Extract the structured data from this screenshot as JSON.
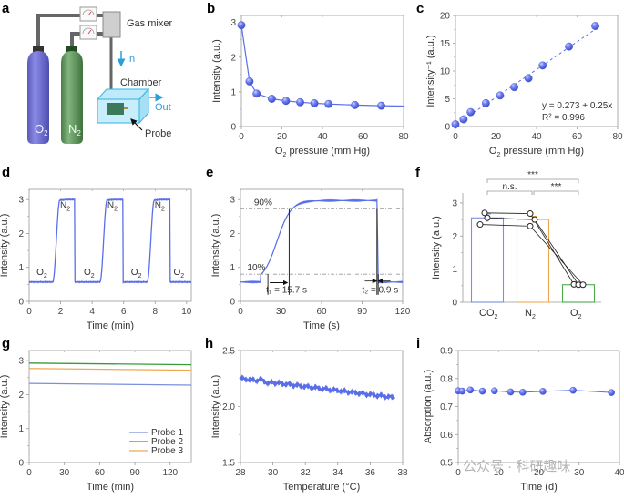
{
  "figure": {
    "panels": [
      "a",
      "b",
      "c",
      "d",
      "e",
      "f",
      "g",
      "h",
      "i"
    ],
    "watermark": "公众号 · 科研趣味"
  },
  "diagram": {
    "letter": "a",
    "gas_mixer_label": "Gas mixer",
    "in_label": "In",
    "chamber_label": "Chamber",
    "out_label": "Out",
    "probe_label": "Probe",
    "cylinder_o2_label": "O",
    "cylinder_o2_sub": "2",
    "cylinder_n2_label": "N",
    "cylinder_n2_sub": "2",
    "colors": {
      "o2_cylinder": "#6a6ad0",
      "n2_cylinder": "#5e9a5a",
      "chamber": "#8fd8f5",
      "arrow": "#2a9fd8",
      "pipe": "#666666"
    }
  },
  "chart_data": [
    {
      "panel": "b",
      "type": "line",
      "xlabel": "O₂ pressure (mm Hg)",
      "ylabel": "Intensity (a.u.)",
      "xlim": [
        0,
        80
      ],
      "ylim": [
        0,
        3.2
      ],
      "xticks": [
        0,
        20,
        40,
        60,
        80
      ],
      "yticks": [
        0,
        1,
        2,
        3
      ],
      "x": [
        0,
        4,
        7.5,
        15,
        22,
        29,
        36,
        43,
        56,
        69
      ],
      "y": [
        2.92,
        1.3,
        0.95,
        0.8,
        0.74,
        0.7,
        0.67,
        0.65,
        0.62,
        0.6
      ],
      "trail_end": [
        80,
        0.59
      ],
      "color": "#5a6ee8",
      "grid": false
    },
    {
      "panel": "c",
      "type": "scatter",
      "xlabel": "O₂ pressure (mm Hg)",
      "ylabel": "Intensity⁻¹ (a.u.)",
      "xlim": [
        0,
        80
      ],
      "ylim": [
        0,
        20
      ],
      "xticks": [
        0,
        20,
        40,
        60,
        80
      ],
      "yticks": [
        0,
        5,
        10,
        15,
        20
      ],
      "x": [
        0,
        4,
        7.5,
        15,
        22,
        29,
        36,
        43,
        56,
        69
      ],
      "y": [
        0.4,
        1.3,
        2.6,
        4.2,
        5.6,
        7.1,
        8.7,
        11.0,
        14.4,
        18.1
      ],
      "fit": {
        "intercept": 0.273,
        "slope": 0.25
      },
      "annotation_eq": "y = 0.273 + 0.25x",
      "annotation_r2": "R² = 0.996",
      "color": "#5a6ee8",
      "grid": false
    },
    {
      "panel": "d",
      "type": "line",
      "xlabel": "Time (min)",
      "ylabel": "Intensity (a.u.)",
      "xlim": [
        0,
        10.3
      ],
      "ylim": [
        0,
        3.3
      ],
      "xticks": [
        0,
        2,
        4,
        6,
        8,
        10
      ],
      "yticks": [
        0,
        1,
        2,
        3
      ],
      "low": 0.57,
      "high": 3.0,
      "n2_intervals": [
        [
          1.5,
          2.9
        ],
        [
          4.5,
          5.95
        ],
        [
          7.5,
          8.95
        ]
      ],
      "labels": [
        {
          "text": "O",
          "sub": "2",
          "x": 0.7,
          "y": 0.78
        },
        {
          "text": "N",
          "sub": "2",
          "x": 2.2,
          "y": 2.75
        },
        {
          "text": "O",
          "sub": "2",
          "x": 3.7,
          "y": 0.78
        },
        {
          "text": "N",
          "sub": "2",
          "x": 5.2,
          "y": 2.75
        },
        {
          "text": "O",
          "sub": "2",
          "x": 6.7,
          "y": 0.78
        },
        {
          "text": "N",
          "sub": "2",
          "x": 8.2,
          "y": 2.75
        },
        {
          "text": "O",
          "sub": "2",
          "x": 9.4,
          "y": 0.78
        }
      ],
      "color": "#5a6ee8"
    },
    {
      "panel": "e",
      "type": "line",
      "xlabel": "Time (s)",
      "ylabel": "Intensity (a.u.)",
      "xlim": [
        0,
        120
      ],
      "ylim": [
        0,
        3.3
      ],
      "xticks": [
        0,
        30,
        60,
        90,
        120
      ],
      "yticks": [
        0,
        1,
        2,
        3
      ],
      "low": 0.57,
      "high": 2.97,
      "rise_start": 15,
      "rise_t10": 20.3,
      "rise_t90": 36,
      "fall_t": 101,
      "fall_end": 102,
      "level_90_pct": 2.72,
      "level_10_pct": 0.8,
      "label_90": "90%",
      "label_10": "10%",
      "t1_label": "t₁ = 15.7 s",
      "t2_label": "t₂ = 0.9 s",
      "color": "#5a6ee8"
    },
    {
      "panel": "f",
      "type": "bar",
      "ylabel": "Intensity (a.u.)",
      "ylim": [
        0,
        3.3
      ],
      "yticks": [
        0,
        1,
        2,
        3
      ],
      "categories": [
        "CO₂",
        "N₂",
        "O₂"
      ],
      "values": [
        2.55,
        2.5,
        0.53
      ],
      "errors": [
        0.12,
        0.1,
        0.02
      ],
      "colors": [
        "#7b8fdc",
        "#f0a850",
        "#4caa4c"
      ],
      "points": [
        [
          2.7,
          2.55,
          2.35
        ],
        [
          2.68,
          2.5,
          2.3
        ],
        [
          0.54,
          0.53,
          0.53
        ]
      ],
      "significance": [
        {
          "from": 0,
          "to": 2,
          "label": "***"
        },
        {
          "from": 0,
          "to": 1,
          "label": "n.s."
        },
        {
          "from": 1,
          "to": 2,
          "label": "***"
        }
      ]
    },
    {
      "panel": "g",
      "type": "line",
      "xlabel": "Time (min)",
      "ylabel": "Intensity (a.u.)",
      "xlim": [
        0,
        138
      ],
      "ylim": [
        0,
        3.3
      ],
      "xticks": [
        0,
        30,
        60,
        90,
        120
      ],
      "yticks": [
        0,
        1,
        2,
        3
      ],
      "series": [
        {
          "name": "Probe 1",
          "start": 2.33,
          "end": 2.28,
          "color": "#7b8fdc"
        },
        {
          "name": "Probe 2",
          "start": 2.93,
          "end": 2.88,
          "color": "#3a9a3a"
        },
        {
          "name": "Probe 3",
          "start": 2.77,
          "end": 2.72,
          "color": "#f0a850"
        }
      ],
      "legend": "bottom-right"
    },
    {
      "panel": "h",
      "type": "line",
      "xlabel": "Temperature (°C)",
      "ylabel": "Intensity (a.u.)",
      "xlim": [
        28,
        38
      ],
      "ylim": [
        1.5,
        2.5
      ],
      "xticks": [
        28,
        30,
        32,
        34,
        36,
        38
      ],
      "yticks": [
        1.5,
        2.0,
        2.5
      ],
      "ytick_labels": [
        "1.5",
        "2.0",
        "2.5"
      ],
      "start": [
        28,
        2.25
      ],
      "end": [
        37.5,
        2.08
      ],
      "color": "#5a6ee8"
    },
    {
      "panel": "i",
      "type": "line",
      "xlabel": "Time (d)",
      "ylabel": "Absorption (a.u.)",
      "xlim": [
        0,
        40
      ],
      "ylim": [
        0.5,
        0.9
      ],
      "xticks": [
        0,
        10,
        20,
        30,
        40
      ],
      "yticks": [
        0.5,
        0.6,
        0.7,
        0.8,
        0.9
      ],
      "ytick_labels": [
        "0.5",
        "0.6",
        "0.7",
        "0.8",
        "0.9"
      ],
      "x": [
        0,
        1,
        3,
        6,
        9,
        13,
        16,
        21,
        28.5,
        38
      ],
      "y": [
        0.756,
        0.755,
        0.759,
        0.755,
        0.756,
        0.752,
        0.751,
        0.754,
        0.758,
        0.75
      ],
      "color": "#5a6ee8"
    }
  ]
}
